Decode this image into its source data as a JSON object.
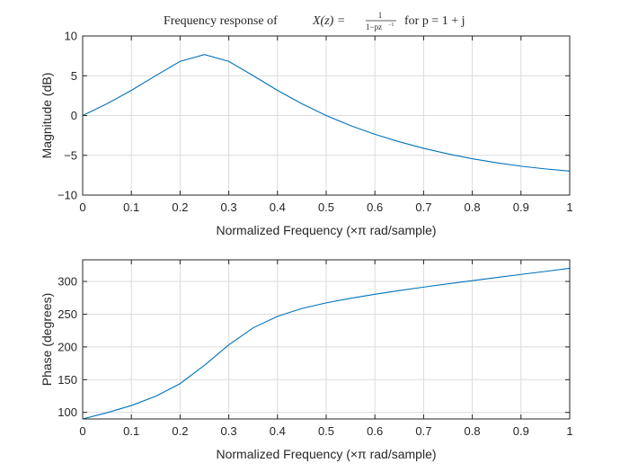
{
  "colors": {
    "line": "#0072bd",
    "grid": "#dcdcdc",
    "axes": "#262626"
  },
  "chart_data": [
    {
      "type": "line",
      "title_parts": {
        "prefix": "Frequency response of",
        "lhs": "X(z) =",
        "numerator": "1",
        "denominator": "1−pz",
        "exponent": "−1",
        "suffix": "for p = 1 + j"
      },
      "xlabel": "Normalized Frequency  (×π rad/sample)",
      "ylabel": "Magnitude (dB)",
      "xlim": [
        0,
        1
      ],
      "ylim": [
        -10,
        10
      ],
      "xticks": [
        0,
        0.1,
        0.2,
        0.3,
        0.4,
        0.5,
        0.6,
        0.7,
        0.8,
        0.9,
        1
      ],
      "yticks": [
        -10,
        -5,
        0,
        5,
        10
      ],
      "grid": true,
      "x": [
        0,
        0.05,
        0.1,
        0.15,
        0.2,
        0.25,
        0.3,
        0.35,
        0.4,
        0.45,
        0.5,
        0.55,
        0.6,
        0.65,
        0.7,
        0.75,
        0.8,
        0.85,
        0.9,
        0.95,
        1
      ],
      "values": [
        0,
        1.48,
        3.16,
        5.01,
        6.81,
        7.66,
        6.81,
        5.01,
        3.16,
        1.48,
        0,
        -1.27,
        -2.36,
        -3.3,
        -4.12,
        -4.82,
        -5.43,
        -5.94,
        -6.37,
        -6.71,
        -6.99
      ]
    },
    {
      "type": "line",
      "xlabel": "Normalized Frequency  (×π rad/sample)",
      "ylabel": "Phase (degrees)",
      "xlim": [
        0,
        1
      ],
      "ylim": [
        90,
        333
      ],
      "xticks": [
        0,
        0.1,
        0.2,
        0.3,
        0.4,
        0.5,
        0.6,
        0.7,
        0.8,
        0.9,
        1
      ],
      "yticks": [
        100,
        150,
        200,
        250,
        300
      ],
      "grid": true,
      "x": [
        0,
        0.05,
        0.1,
        0.15,
        0.2,
        0.25,
        0.3,
        0.35,
        0.4,
        0.45,
        0.5,
        0.55,
        0.6,
        0.65,
        0.7,
        0.75,
        0.8,
        0.85,
        0.9,
        0.95,
        1
      ],
      "values": [
        90,
        99.5,
        110.5,
        124.6,
        143.9,
        172,
        203.2,
        229.1,
        246.7,
        258.7,
        267.3,
        274.2,
        280.4,
        286.0,
        291.3,
        296.3,
        301.2,
        306.0,
        310.7,
        315.3,
        320
      ]
    }
  ]
}
